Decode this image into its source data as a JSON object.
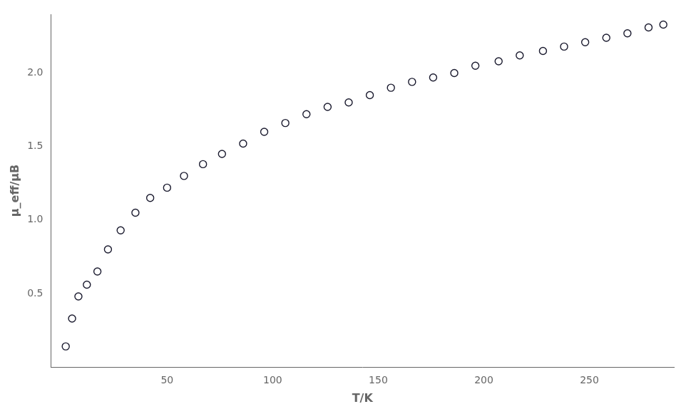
{
  "chart_data": {
    "type": "scatter",
    "xlabel": "T/K",
    "ylabel": "μ_eff/μB",
    "x": [
      2,
      5,
      8,
      12,
      17,
      22,
      28,
      35,
      42,
      50,
      58,
      67,
      76,
      86,
      96,
      106,
      116,
      126,
      136,
      146,
      156,
      166,
      176,
      186,
      196,
      207,
      217,
      228,
      238,
      248,
      258,
      268,
      278,
      285
    ],
    "values": [
      0.14,
      0.33,
      0.48,
      0.56,
      0.65,
      0.8,
      0.93,
      1.05,
      1.15,
      1.22,
      1.3,
      1.38,
      1.45,
      1.52,
      1.6,
      1.66,
      1.72,
      1.77,
      1.8,
      1.85,
      1.9,
      1.94,
      1.97,
      2.0,
      2.05,
      2.08,
      2.12,
      2.15,
      2.18,
      2.21,
      2.24,
      2.27,
      2.31,
      2.33
    ],
    "color": "#1a1a2e",
    "marker": "circle",
    "line_style": "none",
    "xlim": [
      -5,
      290
    ],
    "ylim": [
      0,
      2.4
    ],
    "xticks": [
      50,
      100,
      150,
      200,
      250
    ],
    "yticks": [
      0.5,
      {
        "value": 1.0,
        "label": "1.0"
      },
      1.5,
      {
        "value": 2.0,
        "label": "2.0"
      }
    ],
    "grid": false
  }
}
